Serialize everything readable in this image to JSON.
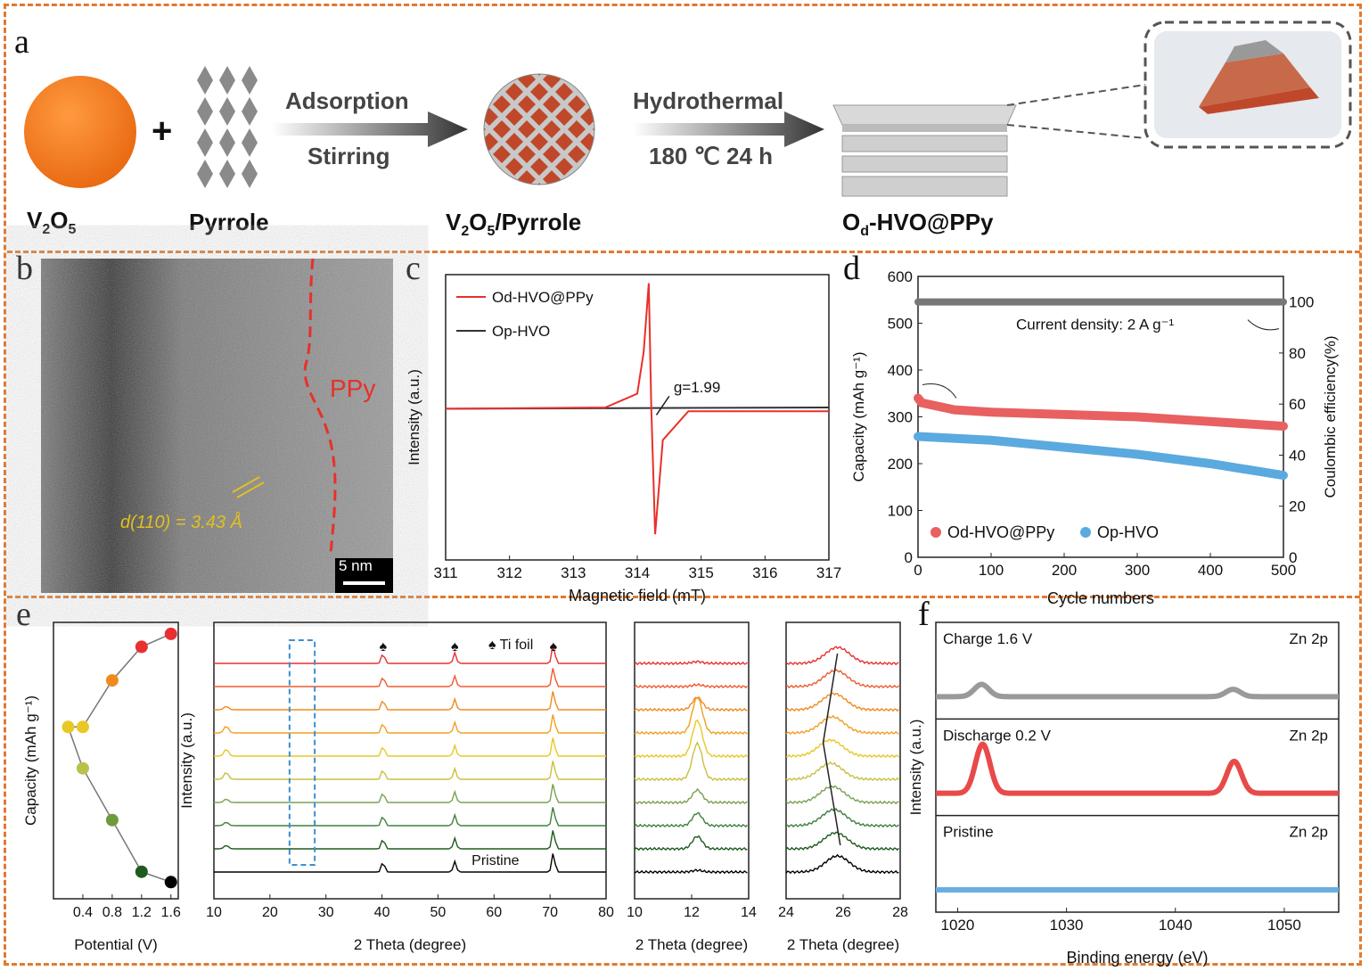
{
  "panel_labels": {
    "a": "a",
    "b": "b",
    "c": "c",
    "d": "d",
    "e": "e",
    "f": "f"
  },
  "scheme": {
    "v2o5": "V2O5",
    "plus": "+",
    "pyrrole": "Pyrrole",
    "arrow1_top": "Adsorption",
    "arrow1_bottom": "Stirring",
    "intermediate": "V2O5/Pyrrole",
    "arrow2_top": "Hydrothermal",
    "arrow2_bottom": "180 ℃ 24 h",
    "product": "Od-HVO@PPy",
    "colors": {
      "sphere": "#f07820",
      "diamond": "#8a8a8a",
      "checker": "#c0482a"
    }
  },
  "tem": {
    "ppy_label": "PPy",
    "d_spacing": "d(110) = 3.43 Å",
    "scale_bar": "5 nm"
  },
  "chart_data": [
    {
      "id": "c",
      "type": "line",
      "xlabel": "Magnetic field (mT)",
      "ylabel": "Intensity (a.u.)",
      "xlim": [
        311,
        317
      ],
      "xticks": [
        311,
        312,
        313,
        314,
        315,
        316,
        317
      ],
      "annotation": "g=1.99",
      "series": [
        {
          "name": "Od-HVO@PPy",
          "color": "#e8302a",
          "x": [
            311,
            313.5,
            314.0,
            314.1,
            314.18,
            314.22,
            314.28,
            314.4,
            314.8,
            317
          ],
          "y": [
            0,
            0.01,
            0.12,
            0.45,
            1.0,
            0.0,
            -1.0,
            -0.25,
            -0.02,
            -0.02
          ]
        },
        {
          "name": "Op-HVO",
          "color": "#333333",
          "x": [
            311,
            317
          ],
          "y": [
            0,
            0.01
          ]
        }
      ]
    },
    {
      "id": "d",
      "type": "scatter",
      "xlabel": "Cycle numbers",
      "ylabel": "Capacity (mAh g⁻¹)",
      "ylabel_right": "Coulombic efficiency(%)",
      "xlim": [
        0,
        500
      ],
      "ylim": [
        0,
        600
      ],
      "ylim_right": [
        0,
        110
      ],
      "xticks": [
        0,
        100,
        200,
        300,
        400,
        500
      ],
      "yticks": [
        0,
        100,
        200,
        300,
        400,
        500,
        600
      ],
      "yticks_right": [
        0,
        20,
        40,
        60,
        80,
        100
      ],
      "annotation": "Current density: 2 A g⁻¹",
      "series": [
        {
          "name": "Od-HVO@PPy",
          "color": "#e86060",
          "x": [
            0,
            5,
            50,
            100,
            200,
            300,
            400,
            500
          ],
          "y": [
            340,
            330,
            315,
            310,
            305,
            300,
            290,
            280
          ]
        },
        {
          "name": "Op-HVO",
          "color": "#5aaadf",
          "x": [
            0,
            100,
            200,
            300,
            400,
            500
          ],
          "y": [
            258,
            250,
            235,
            220,
            200,
            175
          ]
        },
        {
          "name": "Coulombic efficiency",
          "color": "#777777",
          "axis": "right",
          "x": [
            0,
            500
          ],
          "y": [
            100,
            100
          ]
        }
      ]
    },
    {
      "id": "e-capacity",
      "type": "scatter",
      "xlabel": "Potential (V)",
      "ylabel": "Capacity (mAh g⁻¹)",
      "xlim": [
        0.0,
        1.7
      ],
      "xticks": [
        0.4,
        0.8,
        1.2,
        1.6
      ],
      "points": [
        {
          "potential": 1.6,
          "capacity": 0.97,
          "color": "#000000"
        },
        {
          "potential": 1.2,
          "capacity": 0.93,
          "color": "#1f5a1f"
        },
        {
          "potential": 0.8,
          "capacity": 0.73,
          "color": "#6f9a3c"
        },
        {
          "potential": 0.4,
          "capacity": 0.53,
          "color": "#b8c24a"
        },
        {
          "potential": 0.2,
          "capacity": 0.37,
          "color": "#e8c825"
        },
        {
          "potential": 0.4,
          "capacity": 0.37,
          "color": "#e8c825"
        },
        {
          "potential": 0.8,
          "capacity": 0.19,
          "color": "#f08a20"
        },
        {
          "potential": 1.2,
          "capacity": 0.06,
          "color": "#e83030"
        },
        {
          "potential": 1.6,
          "capacity": 0.01,
          "color": "#e83030"
        }
      ]
    },
    {
      "id": "e-xrd",
      "type": "line",
      "xlabel": "2 Theta (degree)",
      "ylabel": "Intensity (a.u.)",
      "xlim": [
        10,
        80
      ],
      "xticks": [
        10,
        20,
        30,
        40,
        50,
        60,
        70,
        80
      ],
      "legend": "Ti foil",
      "pristine_label": "Pristine",
      "ti_peaks": [
        40.2,
        53.0,
        70.6
      ],
      "trace_colors": [
        "#000000",
        "#1f5a1f",
        "#3f8040",
        "#7aa050",
        "#c8c040",
        "#e8c825",
        "#f0a020",
        "#f08a20",
        "#f05a30",
        "#e83030"
      ]
    },
    {
      "id": "e-zoom1",
      "type": "line",
      "xlabel": "2 Theta (degree)",
      "xlim": [
        10,
        14
      ],
      "xticks": [
        10,
        12,
        14
      ],
      "peak": 12.2
    },
    {
      "id": "e-zoom2",
      "type": "line",
      "xlabel": "2 Theta (degree)",
      "xlim": [
        24,
        28
      ],
      "xticks": [
        24,
        26,
        28
      ],
      "peak": 25.8
    },
    {
      "id": "f",
      "type": "line",
      "xlabel": "Binding energy (eV)",
      "ylabel": "Intensity (a.u.)",
      "xlim": [
        1018,
        1055
      ],
      "xticks": [
        1020,
        1030,
        1040,
        1050
      ],
      "panels": [
        {
          "label": "Charge 1.6 V",
          "element": "Zn 2p",
          "color": "#9a9a9a",
          "peaks": [
            [
              1022.2,
              0.25
            ],
            [
              1045.3,
              0.15
            ]
          ]
        },
        {
          "label": "Discharge 0.2 V",
          "element": "Zn 2p",
          "color": "#e84a4a",
          "peaks": [
            [
              1022.3,
              1.0
            ],
            [
              1045.4,
              0.65
            ]
          ]
        },
        {
          "label": "Pristine",
          "element": "Zn 2p",
          "color": "#6aaee0",
          "peaks": []
        }
      ]
    }
  ]
}
